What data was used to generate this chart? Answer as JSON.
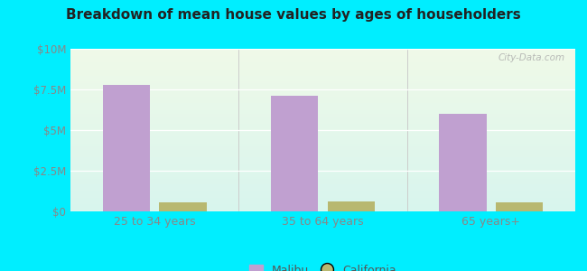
{
  "title": "Breakdown of mean house values by ages of householders",
  "categories": [
    "25 to 34 years",
    "35 to 64 years",
    "65 years+"
  ],
  "malibu_values": [
    7800000,
    7100000,
    6000000
  ],
  "california_values": [
    550000,
    620000,
    530000
  ],
  "malibu_color": "#c0a0d0",
  "california_color": "#b8b870",
  "ylim": [
    0,
    10000000
  ],
  "yticks": [
    0,
    2500000,
    5000000,
    7500000,
    10000000
  ],
  "ytick_labels": [
    "$0",
    "$2.5M",
    "$5M",
    "$7.5M",
    "$10M"
  ],
  "background_outer": "#00eeff",
  "background_inner_top": "#f0fae8",
  "background_inner_bottom": "#d8f5ee",
  "bar_width": 0.28,
  "watermark": "City-Data.com",
  "legend_labels": [
    "Malibu",
    "California"
  ],
  "group_sep_color": "#aaaaaa"
}
